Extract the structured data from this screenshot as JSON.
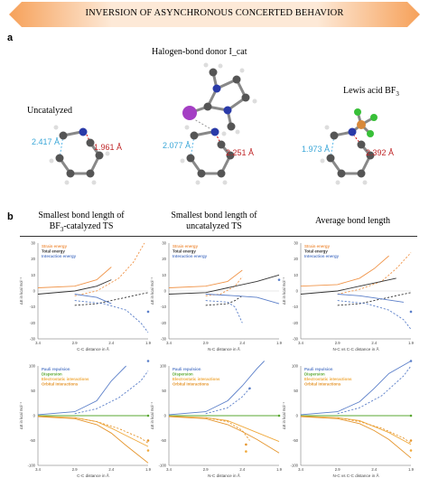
{
  "banner": {
    "title": "INVERSION OF ASYNCHRONOUS CONCERTED BEHAVIOR"
  },
  "panel_a": {
    "label": "a",
    "halogen_title": "Halogen-bond donor I_cat",
    "structures": [
      {
        "name": "Uncatalyzed",
        "d_cc": "2.417 Å",
        "d_nc": "1.961 Å"
      },
      {
        "name": "",
        "d_cc": "2.077 Å",
        "d_nc": "2.251 Å"
      },
      {
        "name": "Lewis acid BF3",
        "d_cc": "1.973 Å",
        "d_nc": "2.392 Å"
      }
    ]
  },
  "panel_b": {
    "label": "b",
    "column_titles": [
      [
        "Smallest bond length of",
        "BF3-catalyzed TS"
      ],
      [
        "Smallest bond length of",
        "uncatalyzed TS"
      ],
      [
        "Average bond length"
      ]
    ],
    "y_axis_label": "ΔE in kcal mol⁻¹",
    "x_axis_labels": [
      "C-C distance in Å",
      "N-C distance in Å",
      "N-C vs C-C distance in Å"
    ],
    "top_legend": [
      "Strain energy",
      "Total energy",
      "Interaction energy"
    ],
    "bottom_legend": [
      "Pauli repulsion",
      "Dispersion",
      "Electrostatic interactions",
      "Orbital interactions"
    ],
    "colors": {
      "strain": "#f0954a",
      "total": "#333333",
      "interaction": "#5b7fc9",
      "pauli": "#5b7fc9",
      "dispersion": "#5aa832",
      "electro": "#f0a93c",
      "orbital": "#e5952c"
    }
  },
  "chart_data": [
    {
      "type": "line",
      "x_ticks": [
        "3.4",
        "2.9",
        "2.4",
        "1.9"
      ],
      "y_ticks": [
        "30",
        "20",
        "10",
        "0",
        "-10",
        "-20",
        "-30"
      ],
      "ylim": [
        -30,
        30
      ],
      "series": [
        {
          "name": "Strain energy"
        },
        {
          "name": "Total energy"
        },
        {
          "name": "Interaction energy"
        }
      ]
    },
    {
      "type": "line",
      "x_ticks": [
        "3.4",
        "2.9",
        "2.4",
        "1.9"
      ],
      "y_ticks": [
        "30",
        "20",
        "10",
        "0",
        "-10",
        "-20",
        "-30"
      ],
      "ylim": [
        -30,
        30
      ],
      "series": [
        {
          "name": "Strain energy"
        },
        {
          "name": "Total energy"
        },
        {
          "name": "Interaction energy"
        }
      ]
    },
    {
      "type": "line",
      "x_ticks": [
        "3.4",
        "2.9",
        "2.4",
        "1.9"
      ],
      "y_ticks": [
        "30",
        "20",
        "10",
        "0",
        "-10",
        "-20",
        "-30"
      ],
      "ylim": [
        -30,
        30
      ],
      "series": [
        {
          "name": "Strain energy"
        },
        {
          "name": "Total energy"
        },
        {
          "name": "Interaction energy"
        }
      ]
    },
    {
      "type": "line",
      "x_ticks": [
        "3.4",
        "2.9",
        "2.4",
        "1.9"
      ],
      "y_ticks": [
        "100",
        "50",
        "0",
        "-50",
        "-100"
      ],
      "ylim": [
        -100,
        100
      ],
      "series": [
        {
          "name": "Pauli repulsion"
        },
        {
          "name": "Dispersion"
        },
        {
          "name": "Electrostatic interactions"
        },
        {
          "name": "Orbital interactions"
        }
      ]
    },
    {
      "type": "line",
      "x_ticks": [
        "3.4",
        "2.9",
        "2.4",
        "1.9"
      ],
      "y_ticks": [
        "100",
        "50",
        "0",
        "-50",
        "-100"
      ],
      "ylim": [
        -100,
        100
      ],
      "series": [
        {
          "name": "Pauli repulsion"
        },
        {
          "name": "Dispersion"
        },
        {
          "name": "Electrostatic interactions"
        },
        {
          "name": "Orbital interactions"
        }
      ]
    },
    {
      "type": "line",
      "x_ticks": [
        "3.4",
        "2.9",
        "2.4",
        "1.9"
      ],
      "y_ticks": [
        "100",
        "50",
        "0",
        "-50",
        "-100"
      ],
      "ylim": [
        -100,
        100
      ],
      "series": [
        {
          "name": "Pauli repulsion"
        },
        {
          "name": "Dispersion"
        },
        {
          "name": "Electrostatic interactions"
        },
        {
          "name": "Orbital interactions"
        }
      ]
    }
  ]
}
